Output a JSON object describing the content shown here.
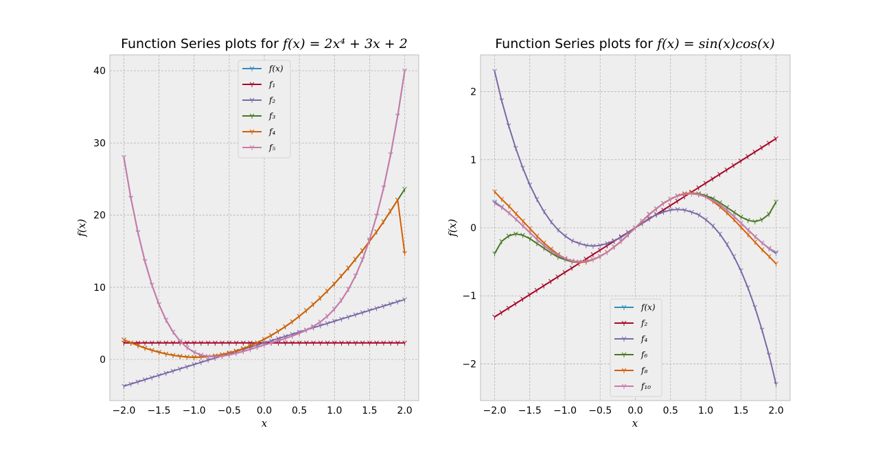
{
  "chart_data": [
    {
      "type": "line",
      "title": "Function Series plots for ",
      "title_math": "f(x) = 2x⁴ + 3x + 2",
      "xlabel": "x",
      "ylabel": "f(x)",
      "xlim": [
        -2.2,
        2.2
      ],
      "ylim": [
        -5.7,
        42.2
      ],
      "xticks": [
        "−2.0",
        "−1.5",
        "−1.0",
        "−0.5",
        "0.0",
        "0.5",
        "1.0",
        "1.5",
        "2.0"
      ],
      "xtick_values": [
        -2.0,
        -1.5,
        -1.0,
        -0.5,
        0.0,
        0.5,
        1.0,
        1.5,
        2.0
      ],
      "yticks": [
        "0",
        "10",
        "20",
        "30",
        "40"
      ],
      "ytick_values": [
        0,
        10,
        20,
        30,
        40
      ],
      "grid": true,
      "legend_position": "top-center",
      "x": [
        -2.0,
        -1.9,
        -1.8,
        -1.7,
        -1.6,
        -1.5,
        -1.4,
        -1.3,
        -1.2,
        -1.1,
        -1.0,
        -0.9,
        -0.8,
        -0.7,
        -0.6,
        -0.5,
        -0.4,
        -0.3,
        -0.2,
        -0.1,
        0.0,
        0.1,
        0.2,
        0.3,
        0.4,
        0.5,
        0.6,
        0.7,
        0.8,
        0.9,
        1.0,
        1.1,
        1.2,
        1.3,
        1.4,
        1.5,
        1.6,
        1.7,
        1.8,
        1.9,
        2.0
      ],
      "series": [
        {
          "name": "f(x)",
          "color": "#348abd",
          "values": [
            28.0,
            22.36,
            17.6,
            13.6,
            10.31,
            7.63,
            5.48,
            3.81,
            2.55,
            1.63,
            1.0,
            0.61,
            0.42,
            0.38,
            0.46,
            0.63,
            0.85,
            1.12,
            1.4,
            1.7,
            2.0,
            2.3,
            2.6,
            2.92,
            3.25,
            3.63,
            4.06,
            4.58,
            5.22,
            6.01,
            7.0,
            8.23,
            9.75,
            11.61,
            13.88,
            16.63,
            19.91,
            23.8,
            28.4,
            33.76,
            40.0
          ]
        },
        {
          "name": "f₁",
          "color": "#a60628",
          "values": [
            2.3,
            2.3,
            2.3,
            2.3,
            2.3,
            2.3,
            2.3,
            2.3,
            2.3,
            2.3,
            2.3,
            2.3,
            2.3,
            2.3,
            2.3,
            2.3,
            2.3,
            2.3,
            2.3,
            2.3,
            2.3,
            2.3,
            2.3,
            2.3,
            2.3,
            2.3,
            2.3,
            2.3,
            2.3,
            2.3,
            2.3,
            2.3,
            2.3,
            2.3,
            2.3,
            2.3,
            2.3,
            2.3,
            2.3,
            2.3,
            2.3
          ]
        },
        {
          "name": "f₂",
          "color": "#7a68a6",
          "values": [
            -3.7,
            -3.4,
            -3.1,
            -2.8,
            -2.5,
            -2.2,
            -1.9,
            -1.6,
            -1.3,
            -1.0,
            -0.7,
            -0.4,
            -0.1,
            0.2,
            0.5,
            0.8,
            1.1,
            1.4,
            1.7,
            2.0,
            2.3,
            2.6,
            2.9,
            3.2,
            3.5,
            3.8,
            4.1,
            4.4,
            4.7,
            5.0,
            5.3,
            5.6,
            5.9,
            6.2,
            6.5,
            6.8,
            7.1,
            7.4,
            7.7,
            8.0,
            8.3
          ]
        },
        {
          "name": "f₃",
          "color": "#467821",
          "values": [
            2.72,
            2.31,
            1.93,
            1.58,
            1.27,
            1.0,
            0.77,
            0.58,
            0.44,
            0.34,
            0.3,
            0.32,
            0.39,
            0.51,
            0.68,
            0.91,
            1.18,
            1.51,
            1.89,
            2.32,
            2.8,
            3.34,
            3.92,
            4.56,
            5.25,
            6.0,
            6.8,
            7.65,
            8.55,
            9.51,
            10.5,
            11.6,
            12.7,
            13.9,
            15.1,
            16.4,
            17.7,
            19.1,
            20.6,
            22.1,
            23.6
          ]
        },
        {
          "name": "f₄",
          "color": "#d55e00",
          "values": [
            2.72,
            2.31,
            1.93,
            1.58,
            1.27,
            1.0,
            0.77,
            0.58,
            0.44,
            0.34,
            0.3,
            0.32,
            0.39,
            0.51,
            0.68,
            0.91,
            1.18,
            1.51,
            1.89,
            2.32,
            2.8,
            3.34,
            3.92,
            4.56,
            5.25,
            6.0,
            6.8,
            7.65,
            8.55,
            9.51,
            10.5,
            11.6,
            12.7,
            13.9,
            15.1,
            16.4,
            17.7,
            19.1,
            20.6,
            22.1,
            14.7
          ]
        },
        {
          "name": "f₅",
          "color": "#cc79a7",
          "values": [
            28.0,
            22.36,
            17.6,
            13.6,
            10.31,
            7.63,
            5.48,
            3.81,
            2.55,
            1.63,
            1.0,
            0.61,
            0.42,
            0.38,
            0.46,
            0.63,
            0.85,
            1.12,
            1.4,
            1.7,
            2.0,
            2.3,
            2.6,
            2.92,
            3.25,
            3.63,
            4.06,
            4.58,
            5.22,
            6.01,
            7.0,
            8.23,
            9.75,
            11.61,
            13.88,
            16.63,
            19.91,
            23.8,
            28.4,
            33.76,
            40.0
          ]
        }
      ]
    },
    {
      "type": "line",
      "title": "Function Series plots for ",
      "title_math": "f(x) = sin(x)cos(x)",
      "xlabel": "x",
      "ylabel": "f(x)",
      "xlim": [
        -2.2,
        2.2
      ],
      "ylim": [
        -2.54,
        2.54
      ],
      "xticks": [
        "−2.0",
        "−1.5",
        "−1.0",
        "−0.5",
        "0.0",
        "0.5",
        "1.0",
        "1.5",
        "2.0"
      ],
      "xtick_values": [
        -2.0,
        -1.5,
        -1.0,
        -0.5,
        0.0,
        0.5,
        1.0,
        1.5,
        2.0
      ],
      "yticks": [
        "−2",
        "−1",
        "0",
        "1",
        "2"
      ],
      "ytick_values": [
        -2,
        -1,
        0,
        1,
        2
      ],
      "grid": true,
      "legend_position": "bottom-center",
      "x": [
        -2.0,
        -1.9,
        -1.8,
        -1.7,
        -1.6,
        -1.5,
        -1.4,
        -1.3,
        -1.2,
        -1.1,
        -1.0,
        -0.9,
        -0.8,
        -0.7,
        -0.6,
        -0.5,
        -0.4,
        -0.3,
        -0.2,
        -0.1,
        0.0,
        0.1,
        0.2,
        0.3,
        0.4,
        0.5,
        0.6,
        0.7,
        0.8,
        0.9,
        1.0,
        1.1,
        1.2,
        1.3,
        1.4,
        1.5,
        1.6,
        1.7,
        1.8,
        1.9,
        2.0
      ],
      "series": [
        {
          "name": "f(x)",
          "color": "#348abd",
          "values": [
            0.378,
            0.306,
            0.221,
            0.128,
            0.029,
            -0.071,
            -0.167,
            -0.258,
            -0.338,
            -0.404,
            -0.455,
            -0.487,
            -0.5,
            -0.493,
            -0.466,
            -0.421,
            -0.359,
            -0.282,
            -0.195,
            -0.099,
            0.0,
            0.099,
            0.195,
            0.282,
            0.359,
            0.421,
            0.466,
            0.493,
            0.5,
            0.487,
            0.455,
            0.404,
            0.338,
            0.258,
            0.167,
            0.071,
            -0.029,
            -0.128,
            -0.221,
            -0.306,
            -0.378
          ]
        },
        {
          "name": "f₂",
          "color": "#a60628",
          "values": [
            -1.31,
            -1.245,
            -1.179,
            -1.114,
            -1.048,
            -0.983,
            -0.917,
            -0.852,
            -0.786,
            -0.721,
            -0.655,
            -0.59,
            -0.524,
            -0.459,
            -0.393,
            -0.328,
            -0.262,
            -0.197,
            -0.131,
            -0.066,
            0.0,
            0.066,
            0.131,
            0.197,
            0.262,
            0.328,
            0.393,
            0.459,
            0.524,
            0.59,
            0.655,
            0.721,
            0.786,
            0.852,
            0.917,
            0.983,
            1.048,
            1.114,
            1.179,
            1.245,
            1.31
          ]
        },
        {
          "name": "f₄",
          "color": "#7a68a6",
          "values": [
            2.3,
            1.87,
            1.5,
            1.17,
            0.88,
            0.63,
            0.42,
            0.24,
            0.09,
            -0.03,
            -0.12,
            -0.19,
            -0.23,
            -0.26,
            -0.27,
            -0.26,
            -0.23,
            -0.19,
            -0.14,
            -0.07,
            0.0,
            0.07,
            0.14,
            0.19,
            0.23,
            0.26,
            0.27,
            0.26,
            0.23,
            0.19,
            0.12,
            0.03,
            -0.09,
            -0.24,
            -0.42,
            -0.63,
            -0.88,
            -1.17,
            -1.5,
            -1.87,
            -2.3
          ]
        },
        {
          "name": "f₆",
          "color": "#467821",
          "values": [
            -0.38,
            -0.2,
            -0.12,
            -0.09,
            -0.11,
            -0.16,
            -0.23,
            -0.3,
            -0.37,
            -0.43,
            -0.47,
            -0.5,
            -0.51,
            -0.5,
            -0.47,
            -0.42,
            -0.36,
            -0.28,
            -0.2,
            -0.1,
            0.0,
            0.1,
            0.2,
            0.28,
            0.36,
            0.42,
            0.47,
            0.5,
            0.51,
            0.5,
            0.47,
            0.43,
            0.37,
            0.3,
            0.23,
            0.16,
            0.11,
            0.09,
            0.12,
            0.2,
            0.38
          ]
        },
        {
          "name": "f₈",
          "color": "#d55e00",
          "values": [
            0.53,
            0.42,
            0.32,
            0.21,
            0.1,
            -0.01,
            -0.12,
            -0.22,
            -0.31,
            -0.39,
            -0.45,
            -0.49,
            -0.51,
            -0.5,
            -0.47,
            -0.42,
            -0.36,
            -0.28,
            -0.2,
            -0.1,
            0.0,
            0.1,
            0.2,
            0.28,
            0.36,
            0.42,
            0.47,
            0.5,
            0.51,
            0.49,
            0.45,
            0.39,
            0.31,
            0.22,
            0.12,
            0.01,
            -0.1,
            -0.21,
            -0.32,
            -0.42,
            -0.53
          ]
        },
        {
          "name": "f₁₀",
          "color": "#cc79a7",
          "values": [
            0.36,
            0.3,
            0.22,
            0.13,
            0.03,
            -0.07,
            -0.17,
            -0.26,
            -0.34,
            -0.4,
            -0.45,
            -0.49,
            -0.5,
            -0.49,
            -0.47,
            -0.42,
            -0.36,
            -0.28,
            -0.2,
            -0.1,
            0.0,
            0.1,
            0.2,
            0.28,
            0.36,
            0.42,
            0.47,
            0.49,
            0.5,
            0.49,
            0.45,
            0.4,
            0.34,
            0.26,
            0.17,
            0.07,
            -0.03,
            -0.13,
            -0.22,
            -0.3,
            -0.36
          ]
        }
      ]
    }
  ]
}
